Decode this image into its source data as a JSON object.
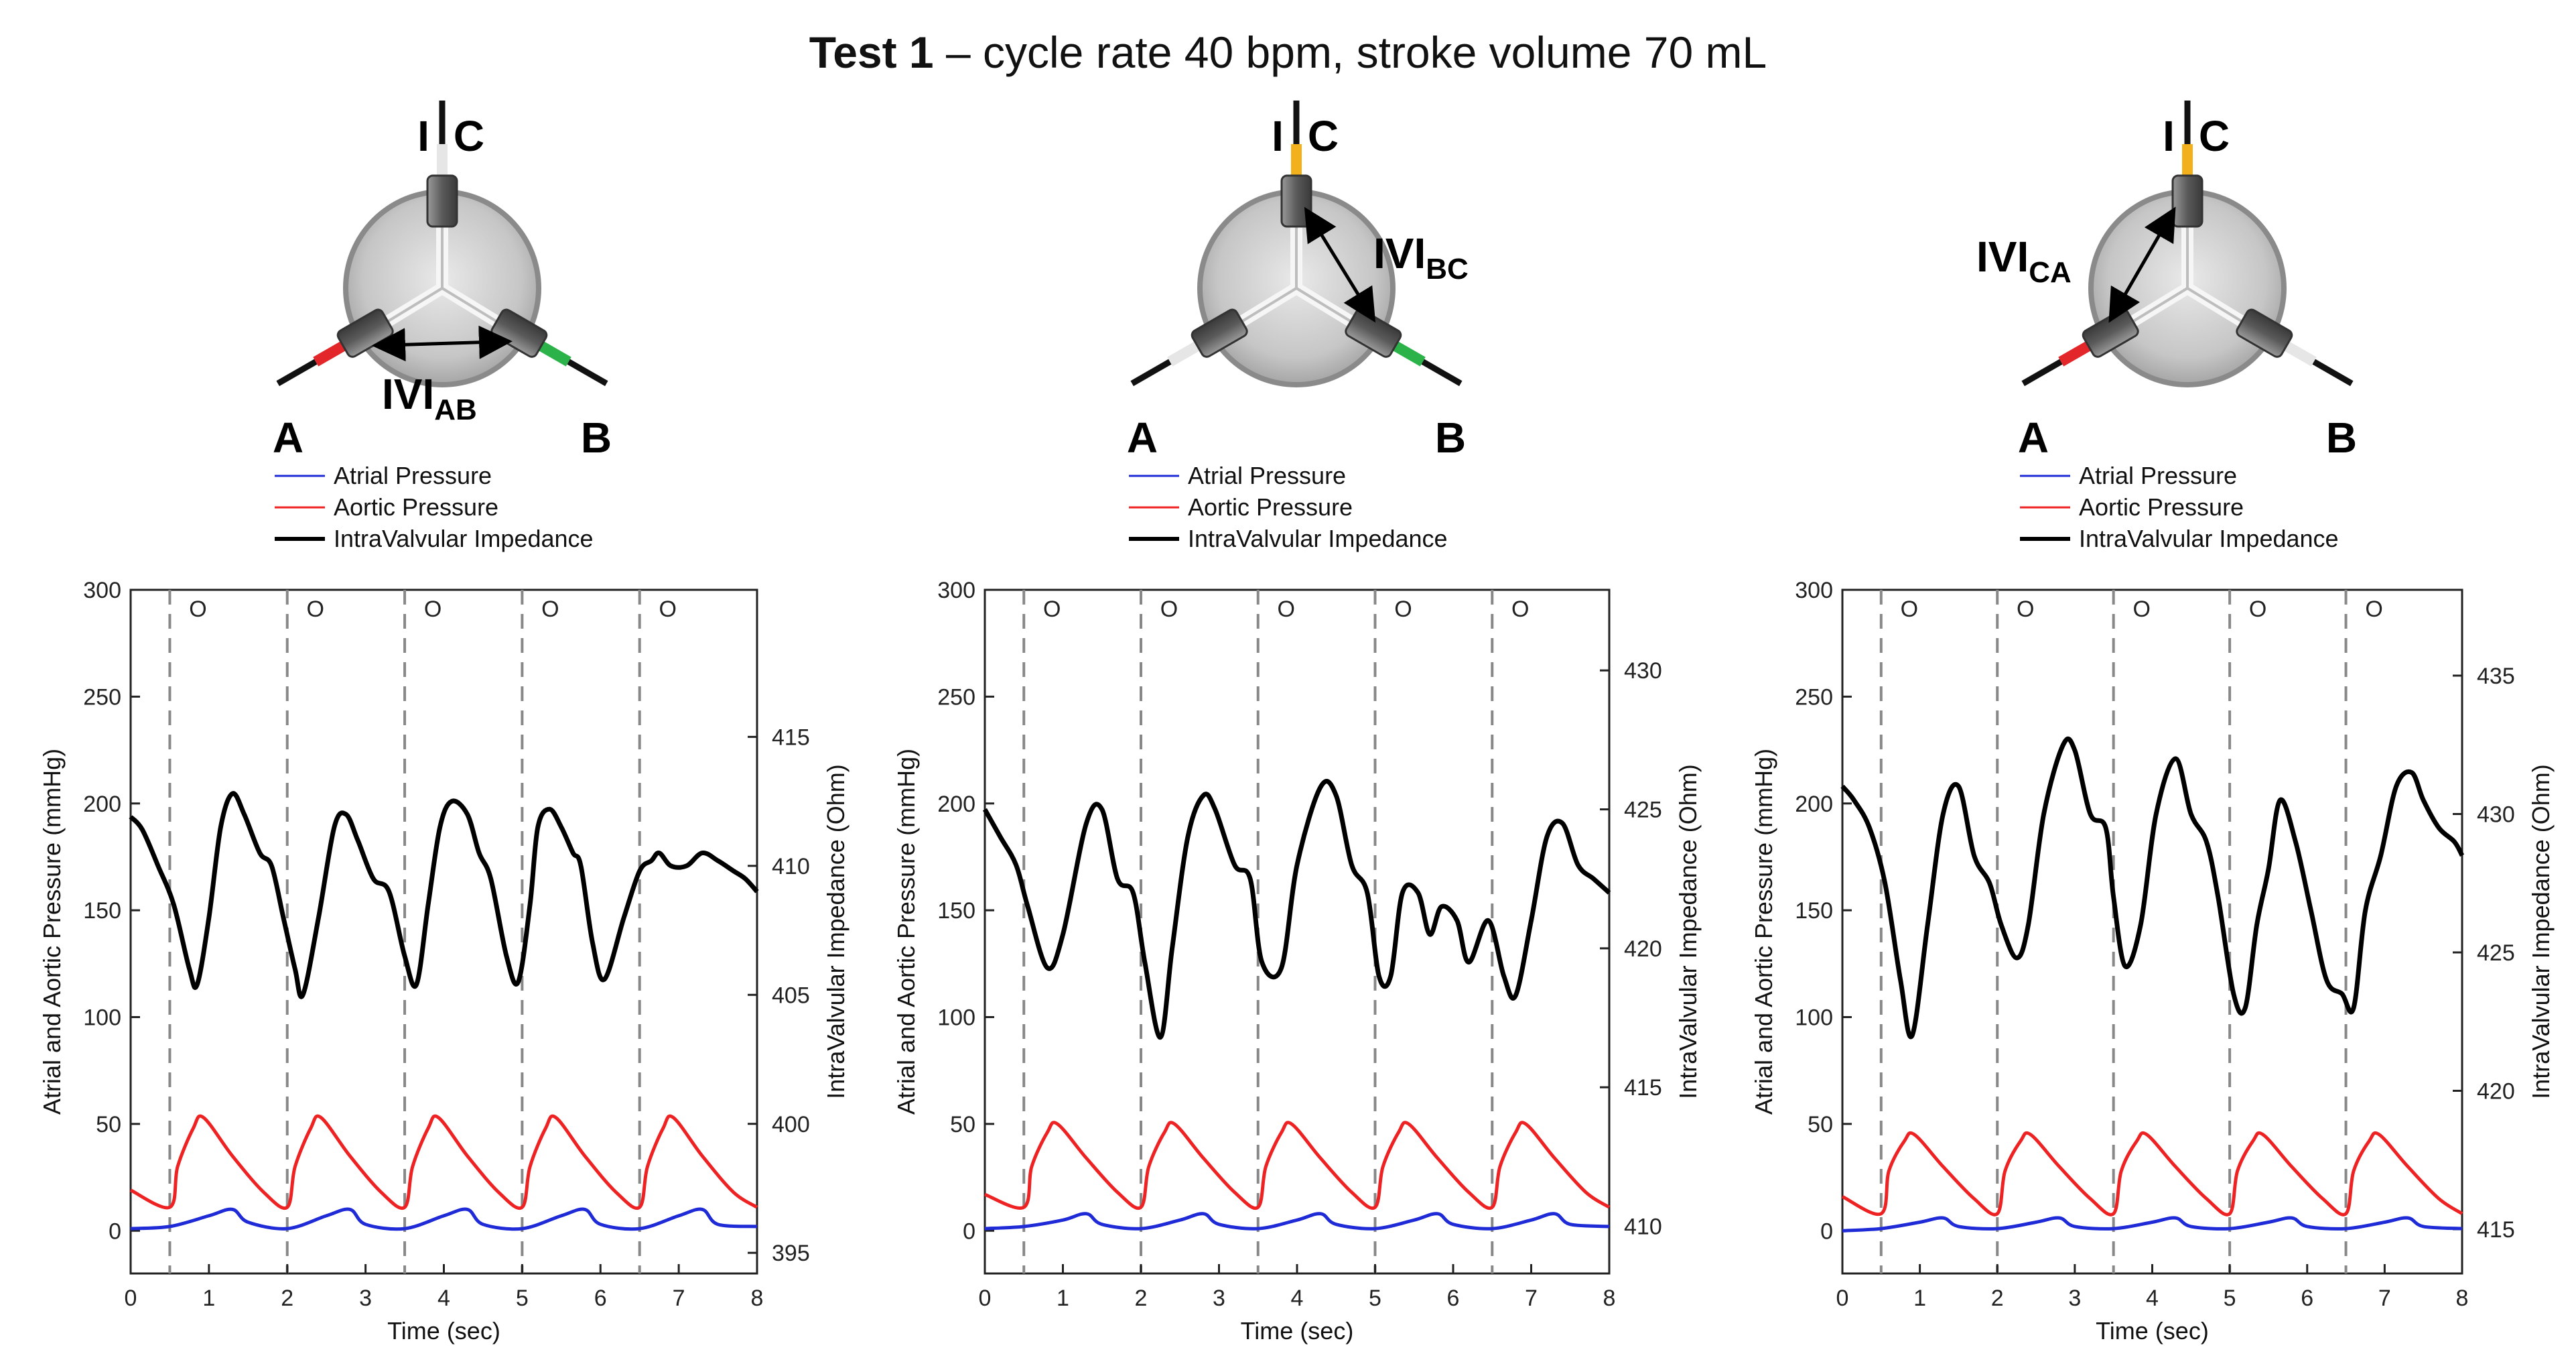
{
  "figure": {
    "title_bold": "Test 1",
    "title_rest": " – cycle rate 40 bpm, stroke volume 70 mL"
  },
  "colors": {
    "atrial": "#1f2bd6",
    "aortic": "#ee2222",
    "impedance": "#000000",
    "valve_red": "#e3262a",
    "valve_green": "#2bb34a",
    "valve_yellow": "#f2b01c",
    "valve_white": "#e6e6e6"
  },
  "legend": [
    "Atrial Pressure",
    "Aortic Pressure",
    "IntraValvular Impedance"
  ],
  "valve_letters": {
    "a": "A",
    "b": "B",
    "c": "C",
    "i": "I"
  },
  "chart_data": [
    {
      "type": "line",
      "measurement": "IVI AB",
      "ivi_main": "IVI",
      "ivi_sub": "AB",
      "xlabel": "Time (sec)",
      "ylabel": "Atrial and Aortic Pressure (mmHg)",
      "y2label": "IntraValvular Impedance (Ohm)",
      "xlim": [
        0,
        8
      ],
      "ylim": [
        -20,
        300
      ],
      "y2lim": [
        394.2,
        420.7
      ],
      "xticks": [
        0,
        1,
        2,
        3,
        4,
        5,
        6,
        7,
        8
      ],
      "yticks": [
        0,
        50,
        100,
        150,
        200,
        250,
        300
      ],
      "y2ticks": [
        395,
        400,
        405,
        410,
        415
      ],
      "open_marker": "O",
      "open_times": [
        0.5,
        2.0,
        3.5,
        5.0,
        6.5
      ],
      "series": [
        {
          "name": "Atrial Pressure",
          "x": [
            0,
            0.5,
            1.0,
            1.3,
            1.5,
            2.0,
            2.5,
            2.8,
            3.0,
            3.5,
            4.0,
            4.3,
            4.5,
            5.0,
            5.5,
            5.8,
            6.0,
            6.5,
            7.0,
            7.3,
            7.5,
            8.0
          ],
          "values": [
            1,
            2,
            7,
            10,
            4,
            1,
            7,
            10,
            3,
            1,
            7,
            10,
            3,
            1,
            7,
            10,
            3,
            1,
            7,
            10,
            3,
            2
          ]
        },
        {
          "name": "Aortic Pressure",
          "x": [
            0,
            0.5,
            0.6,
            0.8,
            0.93,
            1.3,
            1.7,
            2.0,
            2.1,
            2.3,
            2.43,
            2.8,
            3.2,
            3.5,
            3.6,
            3.8,
            3.93,
            4.3,
            4.7,
            5.0,
            5.1,
            5.3,
            5.43,
            5.8,
            6.2,
            6.5,
            6.6,
            6.8,
            6.93,
            7.3,
            7.7,
            8.0
          ],
          "values": [
            19,
            11,
            30,
            48,
            53,
            35,
            18,
            11,
            30,
            48,
            53,
            35,
            18,
            11,
            30,
            48,
            53,
            35,
            18,
            11,
            30,
            48,
            53,
            35,
            18,
            11,
            30,
            48,
            53,
            35,
            18,
            11
          ]
        },
        {
          "name": "IntraValvular Impedance",
          "x": [
            0,
            0.15,
            0.35,
            0.55,
            0.75,
            0.85,
            1.0,
            1.15,
            1.3,
            1.45,
            1.65,
            1.8,
            1.95,
            2.1,
            2.2,
            2.4,
            2.6,
            2.75,
            2.9,
            3.1,
            3.3,
            3.5,
            3.65,
            3.8,
            3.95,
            4.1,
            4.3,
            4.45,
            4.6,
            4.8,
            4.95,
            5.1,
            5.2,
            5.35,
            5.5,
            5.65,
            5.75,
            5.9,
            6.05,
            6.3,
            6.5,
            6.65,
            6.75,
            6.9,
            7.1,
            7.3,
            7.5,
            7.7,
            7.85,
            8.0
          ],
          "values": [
            411.9,
            411.4,
            410.0,
            408.5,
            406.0,
            405.4,
            408.0,
            411.5,
            412.8,
            412.0,
            410.5,
            410.0,
            408.0,
            406.0,
            405.0,
            408.0,
            411.5,
            412.0,
            411.0,
            409.5,
            409.0,
            406.5,
            405.4,
            408.5,
            411.5,
            412.5,
            412.0,
            410.5,
            409.5,
            406.5,
            405.5,
            408.5,
            411.5,
            412.2,
            411.5,
            410.5,
            410.0,
            407.0,
            405.6,
            408.0,
            409.8,
            410.2,
            410.5,
            410.0,
            410.0,
            410.5,
            410.2,
            409.8,
            409.5,
            409.0
          ]
        }
      ]
    },
    {
      "type": "line",
      "measurement": "IVI BC",
      "ivi_main": "IVI",
      "ivi_sub": "BC",
      "xlabel": "Time (sec)",
      "ylabel": "Atrial and Aortic Pressure (mmHg)",
      "y2label": "IntraValvular Impedance (Ohm)",
      "xlim": [
        0,
        8
      ],
      "ylim": [
        -20,
        300
      ],
      "y2lim": [
        408.3,
        432.9
      ],
      "xticks": [
        0,
        1,
        2,
        3,
        4,
        5,
        6,
        7,
        8
      ],
      "yticks": [
        0,
        50,
        100,
        150,
        200,
        250,
        300
      ],
      "y2ticks": [
        410,
        415,
        420,
        425,
        430
      ],
      "open_marker": "O",
      "open_times": [
        0.5,
        2.0,
        3.5,
        5.0,
        6.5
      ],
      "series": [
        {
          "name": "Atrial Pressure",
          "x": [
            0,
            0.5,
            1.0,
            1.3,
            1.5,
            2.0,
            2.5,
            2.8,
            3.0,
            3.5,
            4.0,
            4.3,
            4.5,
            5.0,
            5.5,
            5.8,
            6.0,
            6.5,
            7.0,
            7.3,
            7.5,
            8.0
          ],
          "values": [
            1,
            2,
            5,
            8,
            3,
            1,
            5,
            8,
            3,
            1,
            5,
            8,
            3,
            1,
            5,
            8,
            3,
            1,
            5,
            8,
            3,
            2
          ]
        },
        {
          "name": "Aortic Pressure",
          "x": [
            0,
            0.5,
            0.6,
            0.8,
            0.93,
            1.3,
            1.7,
            2.0,
            2.1,
            2.3,
            2.43,
            2.8,
            3.2,
            3.5,
            3.6,
            3.8,
            3.93,
            4.3,
            4.7,
            5.0,
            5.1,
            5.3,
            5.43,
            5.8,
            6.2,
            6.5,
            6.6,
            6.8,
            6.93,
            7.3,
            7.7,
            8.0
          ],
          "values": [
            17,
            11,
            30,
            46,
            50,
            34,
            18,
            11,
            30,
            46,
            50,
            34,
            18,
            11,
            30,
            46,
            50,
            34,
            18,
            11,
            30,
            46,
            50,
            34,
            18,
            11,
            30,
            46,
            50,
            34,
            18,
            11
          ]
        },
        {
          "name": "IntraValvular Impedance",
          "x": [
            0,
            0.2,
            0.4,
            0.55,
            0.8,
            1.0,
            1.3,
            1.5,
            1.7,
            1.9,
            2.05,
            2.25,
            2.4,
            2.6,
            2.8,
            2.95,
            3.2,
            3.4,
            3.55,
            3.8,
            4.0,
            4.3,
            4.5,
            4.7,
            4.9,
            5.05,
            5.2,
            5.35,
            5.55,
            5.7,
            5.85,
            6.05,
            6.2,
            6.45,
            6.65,
            6.8,
            7.0,
            7.2,
            7.4,
            7.6,
            7.8,
            8.0
          ],
          "values": [
            425.0,
            424.0,
            423.0,
            421.5,
            419.3,
            420.5,
            424.5,
            425.0,
            422.5,
            422.0,
            419.5,
            416.8,
            420.0,
            424.0,
            425.5,
            425.0,
            423.0,
            422.5,
            419.5,
            419.3,
            423.0,
            425.8,
            425.5,
            423.0,
            422.0,
            419.0,
            419.0,
            422.0,
            422.0,
            420.5,
            421.5,
            421.0,
            419.5,
            421.0,
            419.0,
            418.3,
            421.0,
            424.0,
            424.5,
            423.0,
            422.5,
            422.0
          ]
        }
      ]
    },
    {
      "type": "line",
      "measurement": "IVI CA",
      "ivi_main": "IVI",
      "ivi_sub": "CA",
      "xlabel": "Time (sec)",
      "ylabel": "Atrial and Aortic Pressure (mmHg)",
      "y2label": "IntraValvular Impedance (Ohm)",
      "xlim": [
        0,
        8
      ],
      "ylim": [
        -20,
        300
      ],
      "y2lim": [
        413.4,
        438.1
      ],
      "xticks": [
        0,
        1,
        2,
        3,
        4,
        5,
        6,
        7,
        8
      ],
      "yticks": [
        0,
        50,
        100,
        150,
        200,
        250,
        300
      ],
      "y2ticks": [
        415,
        420,
        425,
        430,
        435
      ],
      "open_marker": "O",
      "open_times": [
        0.5,
        2.0,
        3.5,
        5.0,
        6.5
      ],
      "series": [
        {
          "name": "Atrial Pressure",
          "x": [
            0,
            0.5,
            1.0,
            1.3,
            1.5,
            2.0,
            2.5,
            2.8,
            3.0,
            3.5,
            4.0,
            4.3,
            4.5,
            5.0,
            5.5,
            5.8,
            6.0,
            6.5,
            7.0,
            7.3,
            7.5,
            8.0
          ],
          "values": [
            0,
            1,
            4,
            6,
            2,
            1,
            4,
            6,
            2,
            1,
            4,
            6,
            2,
            1,
            4,
            6,
            2,
            1,
            4,
            6,
            2,
            1
          ]
        },
        {
          "name": "Aortic Pressure",
          "x": [
            0,
            0.5,
            0.6,
            0.8,
            0.93,
            1.3,
            1.7,
            2.0,
            2.1,
            2.3,
            2.43,
            2.8,
            3.2,
            3.5,
            3.6,
            3.8,
            3.93,
            4.3,
            4.7,
            5.0,
            5.1,
            5.3,
            5.43,
            5.8,
            6.2,
            6.5,
            6.6,
            6.8,
            6.93,
            7.3,
            7.7,
            8.0
          ],
          "values": [
            16,
            8,
            28,
            42,
            45,
            30,
            15,
            8,
            28,
            42,
            45,
            30,
            15,
            8,
            28,
            42,
            45,
            30,
            15,
            8,
            28,
            42,
            45,
            30,
            15,
            8,
            28,
            42,
            45,
            30,
            15,
            8
          ]
        },
        {
          "name": "IntraValvular Impedance",
          "x": [
            0,
            0.15,
            0.35,
            0.55,
            0.75,
            0.9,
            1.1,
            1.3,
            1.5,
            1.7,
            1.9,
            2.05,
            2.25,
            2.4,
            2.6,
            2.85,
            3.0,
            3.2,
            3.4,
            3.5,
            3.65,
            3.85,
            4.05,
            4.3,
            4.5,
            4.7,
            4.85,
            5.05,
            5.2,
            5.35,
            5.5,
            5.65,
            5.85,
            6.05,
            6.25,
            6.45,
            6.6,
            6.75,
            6.95,
            7.15,
            7.35,
            7.5,
            7.7,
            7.9,
            8.0
          ],
          "values": [
            431.0,
            430.5,
            429.5,
            427.5,
            424.0,
            422.0,
            426.0,
            430.0,
            431.0,
            428.5,
            427.5,
            426.0,
            424.8,
            426.0,
            430.0,
            432.5,
            432.3,
            430.0,
            429.5,
            427.0,
            424.5,
            426.0,
            430.0,
            432.0,
            430.0,
            429.0,
            427.0,
            423.5,
            423.0,
            426.0,
            428.0,
            430.5,
            429.0,
            426.5,
            424.0,
            423.5,
            423.0,
            426.5,
            428.5,
            431.0,
            431.5,
            430.5,
            429.5,
            429.0,
            428.5
          ]
        }
      ]
    }
  ]
}
